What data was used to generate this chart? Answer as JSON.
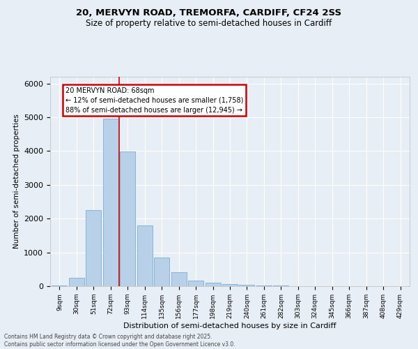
{
  "title_line1": "20, MERVYN ROAD, TREMORFA, CARDIFF, CF24 2SS",
  "title_line2": "Size of property relative to semi-detached houses in Cardiff",
  "xlabel": "Distribution of semi-detached houses by size in Cardiff",
  "ylabel": "Number of semi-detached properties",
  "bar_labels": [
    "9sqm",
    "30sqm",
    "51sqm",
    "72sqm",
    "93sqm",
    "114sqm",
    "135sqm",
    "156sqm",
    "177sqm",
    "198sqm",
    "219sqm",
    "240sqm",
    "261sqm",
    "282sqm",
    "303sqm",
    "324sqm",
    "345sqm",
    "366sqm",
    "387sqm",
    "408sqm",
    "429sqm"
  ],
  "bar_values": [
    30,
    250,
    2250,
    4950,
    3980,
    1800,
    850,
    420,
    170,
    110,
    55,
    40,
    25,
    15,
    10,
    8,
    5,
    4,
    3,
    2,
    1
  ],
  "bar_color": "#b8d0e8",
  "bar_edge_color": "#7aafd4",
  "property_line_x": 3.5,
  "annotation_title": "20 MERVYN ROAD: 68sqm",
  "annotation_line1": "← 12% of semi-detached houses are smaller (1,758)",
  "annotation_line2": "88% of semi-detached houses are larger (12,945) →",
  "annotation_box_color": "#ffffff",
  "annotation_edge_color": "#cc0000",
  "vline_color": "#cc0000",
  "ylim": [
    0,
    6200
  ],
  "background_color": "#e8eef5",
  "footer_line1": "Contains HM Land Registry data © Crown copyright and database right 2025.",
  "footer_line2": "Contains public sector information licensed under the Open Government Licence v3.0."
}
